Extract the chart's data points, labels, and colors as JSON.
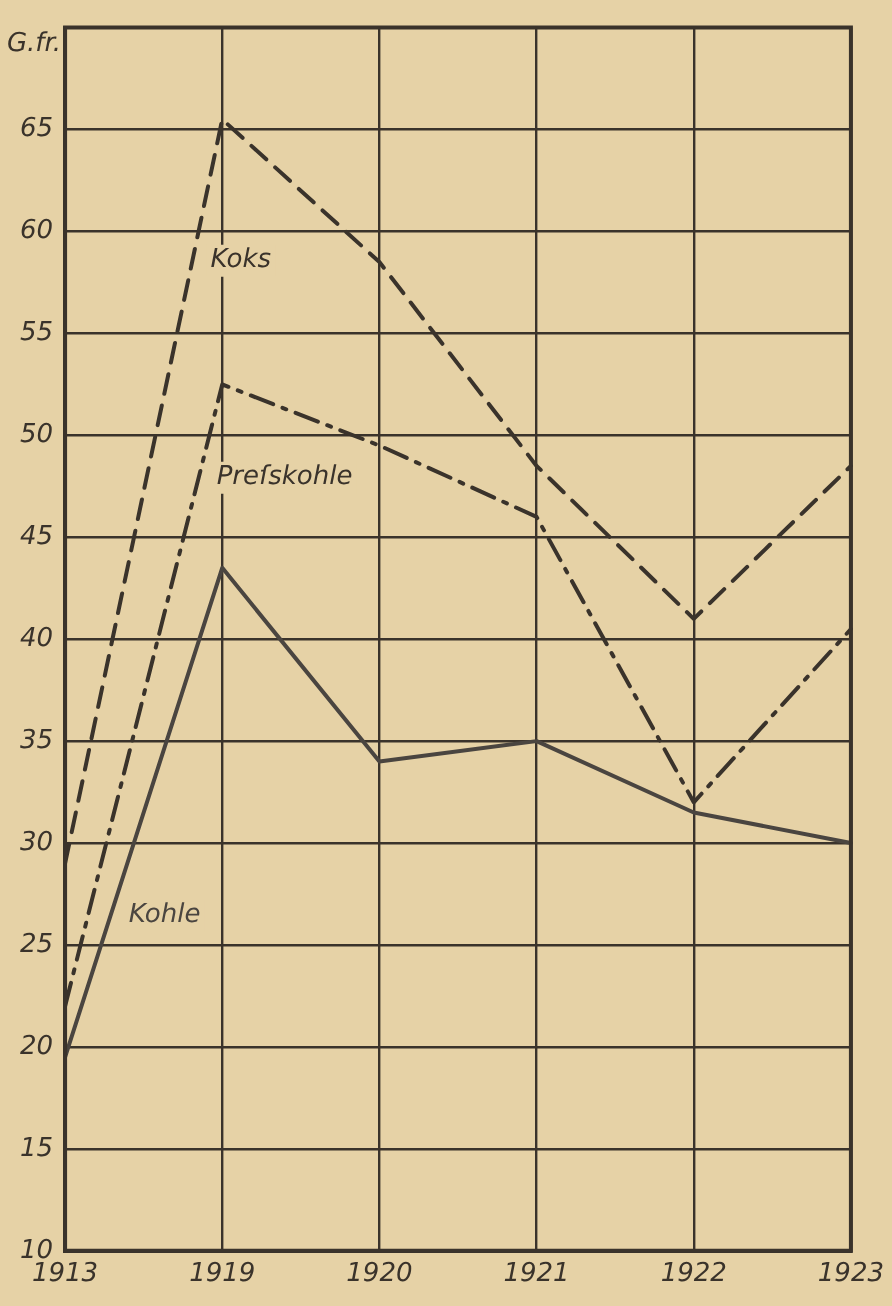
{
  "chart_data": {
    "type": "line",
    "ylabel": "G.fr.",
    "categories": [
      "1913",
      "1919",
      "1920",
      "1921",
      "1922",
      "1923"
    ],
    "series": [
      {
        "name": "Koks",
        "color": "#3a332b",
        "line_style": "dashed",
        "values": [
          29,
          65.5,
          58.5,
          48.5,
          41,
          48.5
        ]
      },
      {
        "name": "Preſskohle",
        "color": "#3a332b",
        "line_style": "dashdot",
        "values": [
          22,
          52.5,
          49.5,
          46,
          32,
          40.5
        ]
      },
      {
        "name": "Kohle",
        "color": "#4a4540",
        "line_style": "solid",
        "values": [
          19.5,
          43.5,
          34,
          35,
          31.5,
          30
        ]
      }
    ],
    "ylim": [
      10,
      70
    ],
    "yticks": [
      10,
      15,
      20,
      25,
      30,
      35,
      40,
      45,
      50,
      55,
      60,
      65
    ],
    "grid": true,
    "legend": false,
    "marker": "none"
  }
}
